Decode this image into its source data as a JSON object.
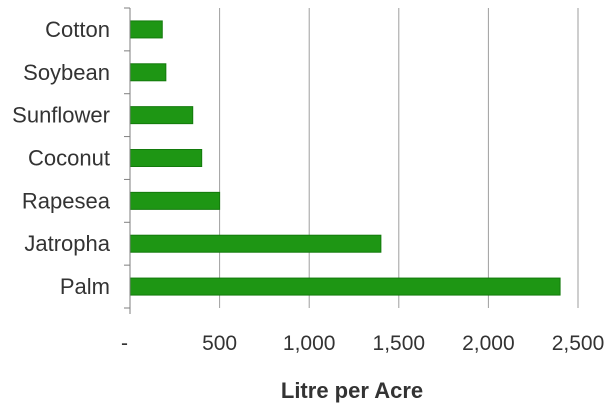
{
  "chart_data": {
    "type": "bar",
    "orientation": "horizontal",
    "categories": [
      "Cotton",
      "Soybean",
      "Sunflower",
      "Coconut",
      "Rapeseed",
      "Jatropha",
      "Palm"
    ],
    "category_labels": [
      "Cotton",
      "Soybean",
      "Sunflower",
      "Coconut",
      "Rapesea",
      "Jatropha",
      "Palm"
    ],
    "values": [
      180,
      200,
      350,
      400,
      500,
      1400,
      2400
    ],
    "xlabel": "Litre per Acre",
    "ylabel": "",
    "xlim": [
      0,
      2500
    ],
    "x_ticks": [
      0,
      500,
      1000,
      1500,
      2000,
      2500
    ],
    "x_tick_labels": [
      "-",
      "500",
      "1,000",
      "1,500",
      "2,000",
      "2,500"
    ],
    "grid": "vertical",
    "legend": "none",
    "colors": {
      "bar": "#1e9614",
      "bar_border": "#137a0c",
      "grid": "#9e9e9e",
      "axis": "#7f7f7f"
    }
  }
}
